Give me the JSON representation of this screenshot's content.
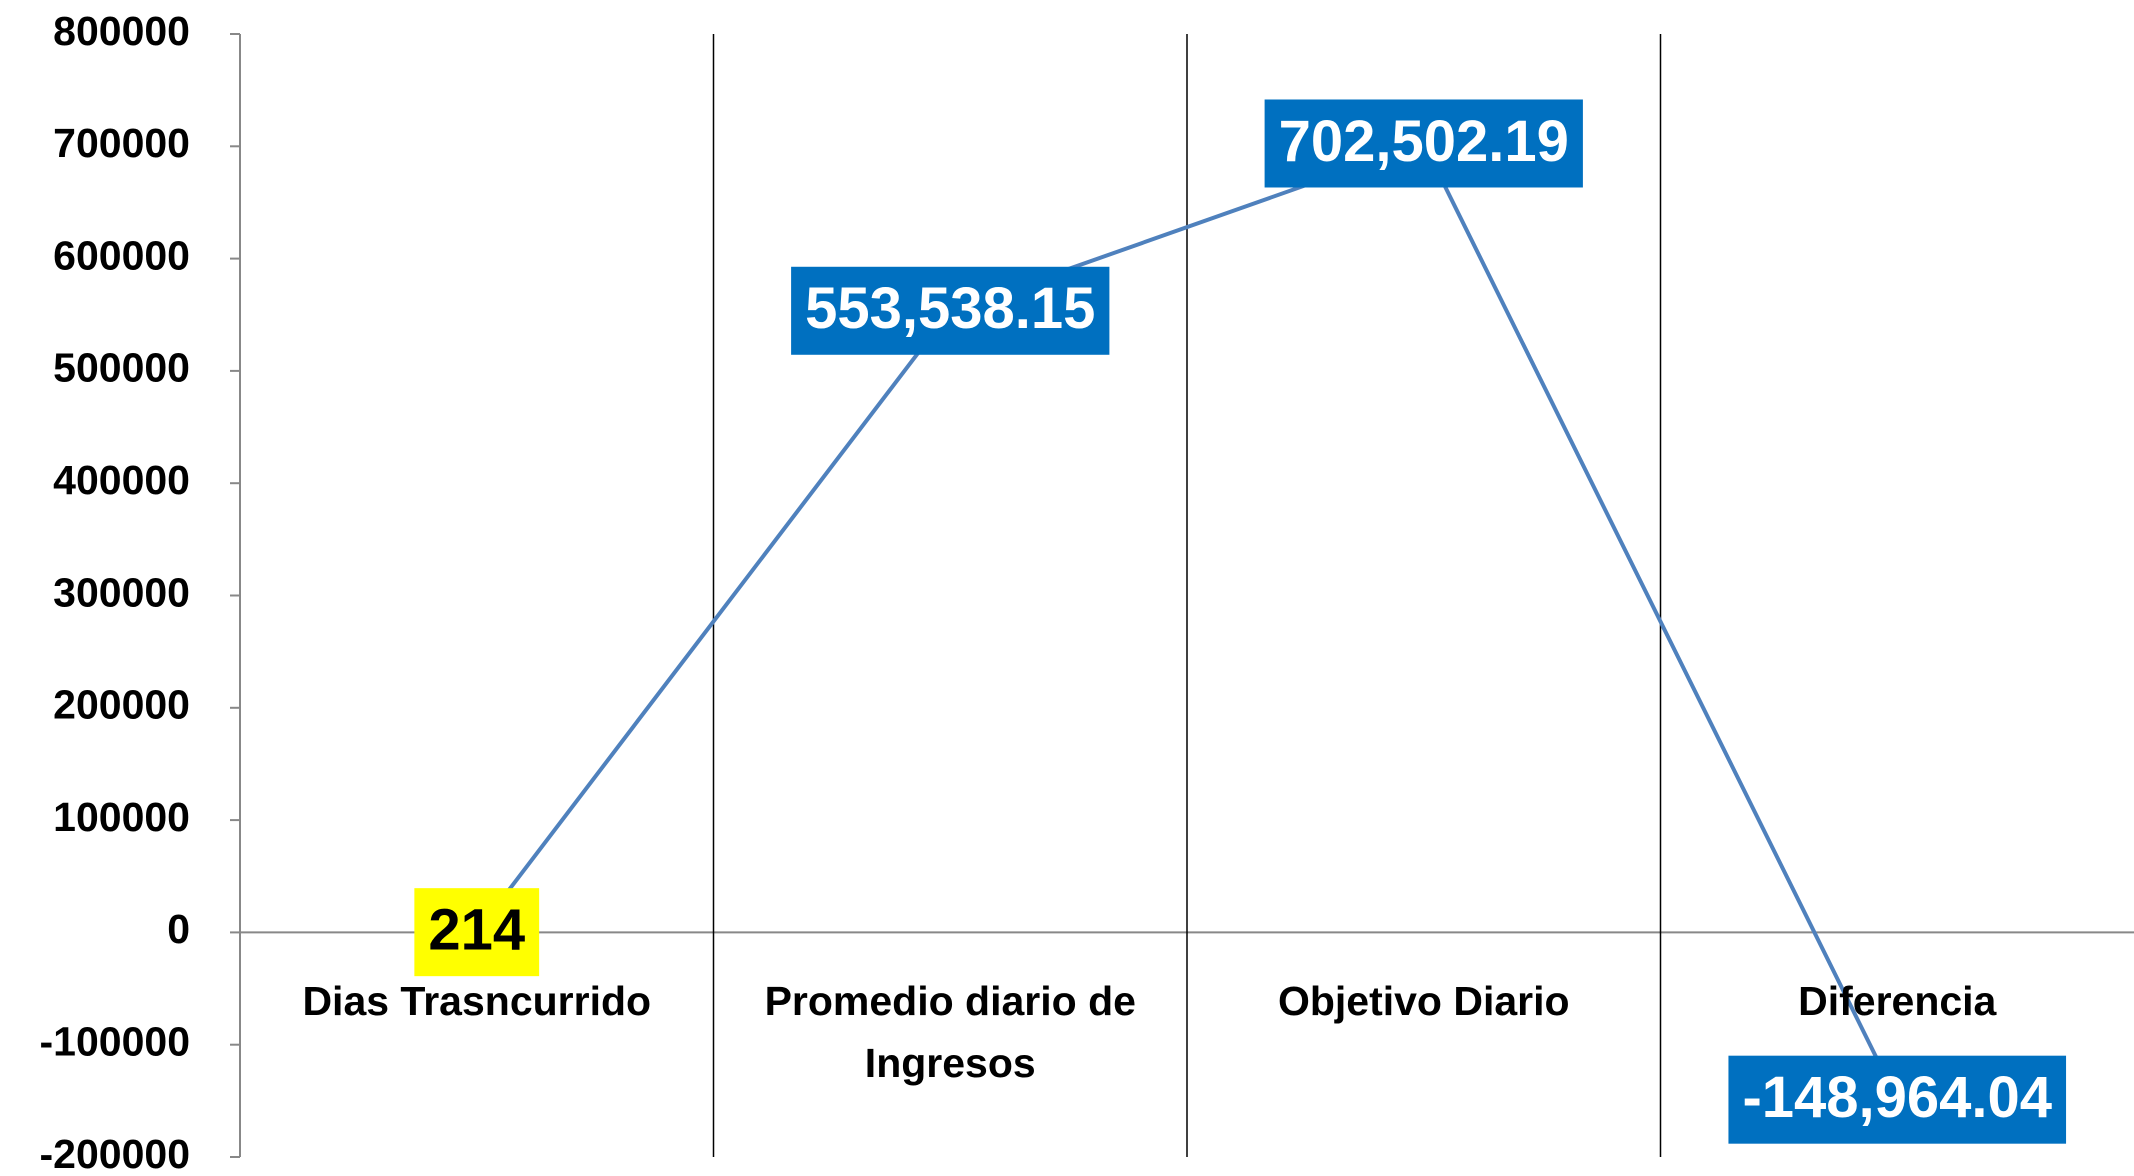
{
  "chart_data": {
    "type": "line",
    "categories": [
      "Dias Trasncurrido",
      "Promedio diario de Ingresos",
      "Objetivo Diario",
      "Diferencia"
    ],
    "series": [
      {
        "color": "#4f81bd",
        "values": [
          214,
          553538.15,
          702502.19,
          -148964.04
        ],
        "value_labels": [
          "214",
          "553,538.15",
          "702,502.19",
          "-148,964.04"
        ],
        "label_colors": [
          "#ffff00",
          "#0070c0",
          "#0070c0",
          "#0070c0"
        ]
      }
    ],
    "ylim": [
      -200000,
      800000
    ],
    "yticks": [
      -200000,
      -100000,
      0,
      100000,
      200000,
      300000,
      400000,
      500000,
      600000,
      700000,
      800000
    ],
    "grid": false
  }
}
